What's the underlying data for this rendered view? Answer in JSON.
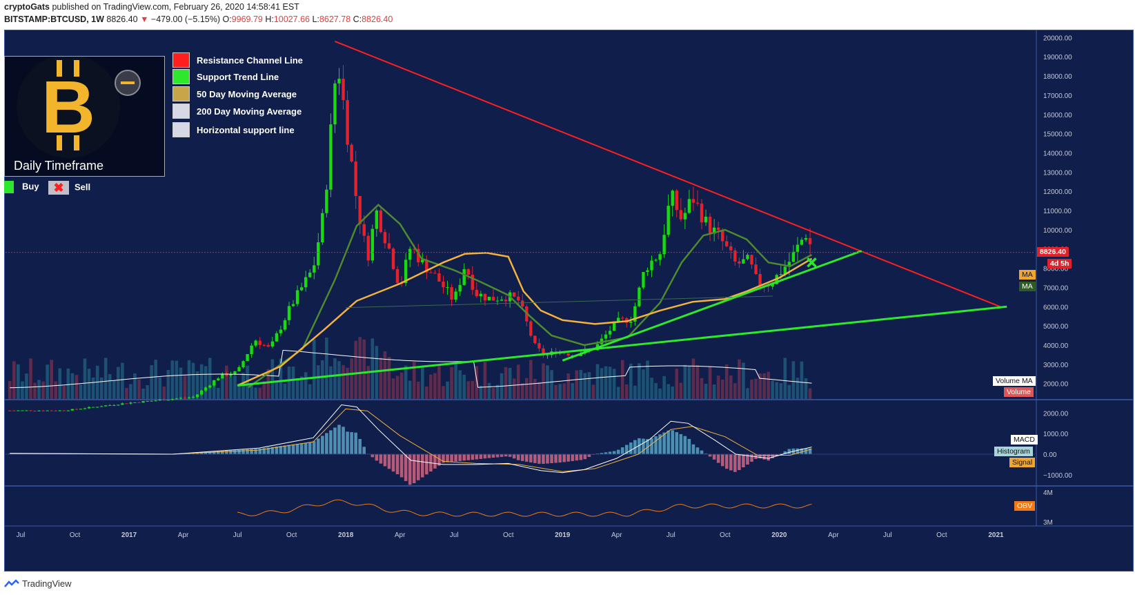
{
  "header": {
    "author": "cryptoGats",
    "published_text": "published on TradingView.com, February 26, 2020 14:58:41 EST",
    "symbol": "BITSTAMP:BTCUSD, 1W",
    "last": "8826.40",
    "change": "−479.00 (−5.15%)",
    "o_label": "O:",
    "o": "9969.79",
    "h_label": "H:",
    "h": "10027.66",
    "l_label": "L:",
    "l": "8627.78",
    "c_label": "C:",
    "c": "8826.40"
  },
  "legend": {
    "items": [
      {
        "label": "Resistance Channel Line",
        "color": "#ff1f1f"
      },
      {
        "label": "Support Trend Line",
        "color": "#2ee82e"
      },
      {
        "label": "50 Day Moving Average",
        "color": "#c9a54a"
      },
      {
        "label": "200 Day Moving Average",
        "color": "#d6d8e6"
      },
      {
        "label": "Horizontal support line",
        "color": "#d6d8e6"
      }
    ],
    "timeframe": "Daily Timeframe",
    "buy": "Buy",
    "sell": "Sell"
  },
  "tags": {
    "price": "8826.40",
    "countdown": "4d 5h",
    "ma1": "MA",
    "ma2": "MA",
    "volume_ma": "Volume MA",
    "volume": "Volume",
    "macd": "MACD",
    "histogram": "Histogram",
    "signal": "Signal",
    "obv": "OBV"
  },
  "footer": {
    "brand": "TradingView"
  },
  "chart_data": {
    "type": "candlestick",
    "title": "BITSTAMP:BTCUSD, 1W",
    "price_axis": [
      "20000.00",
      "19000.00",
      "18000.00",
      "17000.00",
      "16000.00",
      "15000.00",
      "14000.00",
      "13000.00",
      "12000.00",
      "11000.00",
      "10000.00",
      "9000.00",
      "8000.00",
      "7000.00",
      "6000.00",
      "5000.00",
      "4000.00",
      "3000.00",
      "2000.00"
    ],
    "macd_axis": [
      "2000.00",
      "1000.00",
      "0.00",
      "−1000.00"
    ],
    "obv_axis": [
      "4M",
      "3M"
    ],
    "x_ticks": [
      "Jul",
      "Oct",
      "2017",
      "Apr",
      "Jul",
      "Oct",
      "2018",
      "Apr",
      "Jul",
      "Oct",
      "2019",
      "Apr",
      "Jul",
      "Oct",
      "2020",
      "Apr",
      "Jul",
      "Oct",
      "2021"
    ],
    "x_tick_dates": [
      2016.5,
      2016.75,
      2017.0,
      2017.25,
      2017.5,
      2017.75,
      2018.0,
      2018.25,
      2018.5,
      2018.75,
      2019.0,
      2019.25,
      2019.5,
      2019.75,
      2020.0,
      2020.25,
      2020.5,
      2020.75,
      2021.0
    ],
    "ylim": [
      1200,
      20300
    ],
    "xlim": [
      2016.43,
      2021.18
    ],
    "close_path": [
      [
        2016.7,
        600
      ],
      [
        2017.0,
        1000
      ],
      [
        2017.3,
        1300
      ],
      [
        2017.42,
        2400
      ],
      [
        2017.5,
        2600
      ],
      [
        2017.58,
        4300
      ],
      [
        2017.65,
        3800
      ],
      [
        2017.75,
        6100
      ],
      [
        2017.85,
        8000
      ],
      [
        2017.9,
        11000
      ],
      [
        2017.96,
        19000
      ],
      [
        2018.02,
        14000
      ],
      [
        2018.05,
        11500
      ],
      [
        2018.1,
        8500
      ],
      [
        2018.14,
        11000
      ],
      [
        2018.2,
        9000
      ],
      [
        2018.25,
        7000
      ],
      [
        2018.3,
        9200
      ],
      [
        2018.35,
        8300
      ],
      [
        2018.42,
        7500
      ],
      [
        2018.5,
        6300
      ],
      [
        2018.55,
        8200
      ],
      [
        2018.6,
        6700
      ],
      [
        2018.67,
        6400
      ],
      [
        2018.75,
        6550
      ],
      [
        2018.8,
        6300
      ],
      [
        2018.87,
        4000
      ],
      [
        2018.92,
        3400
      ],
      [
        2018.97,
        3700
      ],
      [
        2019.05,
        3500
      ],
      [
        2019.15,
        3850
      ],
      [
        2019.25,
        5200
      ],
      [
        2019.32,
        5400
      ],
      [
        2019.38,
        8000
      ],
      [
        2019.45,
        8800
      ],
      [
        2019.5,
        11800
      ],
      [
        2019.55,
        10500
      ],
      [
        2019.6,
        11700
      ],
      [
        2019.67,
        10200
      ],
      [
        2019.72,
        9700
      ],
      [
        2019.8,
        8200
      ],
      [
        2019.86,
        8400
      ],
      [
        2019.9,
        7200
      ],
      [
        2019.96,
        7200
      ],
      [
        2020.05,
        8400
      ],
      [
        2020.1,
        9400
      ],
      [
        2020.13,
        9900
      ],
      [
        2020.15,
        8826
      ]
    ],
    "resistance_line": [
      [
        2017.95,
        19800
      ],
      [
        2021.02,
        6000
      ]
    ],
    "support_line": [
      [
        2017.5,
        1900
      ],
      [
        2021.05,
        6000
      ]
    ],
    "support_trend_line": [
      [
        2019.0,
        3200
      ],
      [
        2020.38,
        8900
      ]
    ],
    "horizontal_support": [
      [
        2018.0,
        5950
      ],
      [
        2019.97,
        6550
      ]
    ],
    "moving_average_50": [
      [
        2017.5,
        1900
      ],
      [
        2017.7,
        2900
      ],
      [
        2017.9,
        4800
      ],
      [
        2018.05,
        6300
      ],
      [
        2018.25,
        7200
      ],
      [
        2018.45,
        8300
      ],
      [
        2018.55,
        8750
      ],
      [
        2018.65,
        8800
      ],
      [
        2018.75,
        8600
      ],
      [
        2018.82,
        6800
      ],
      [
        2018.9,
        5800
      ],
      [
        2019.0,
        5300
      ],
      [
        2019.15,
        5100
      ],
      [
        2019.3,
        5250
      ],
      [
        2019.45,
        5800
      ],
      [
        2019.6,
        6250
      ],
      [
        2019.75,
        6400
      ],
      [
        2019.85,
        6800
      ],
      [
        2020.0,
        7500
      ],
      [
        2020.15,
        8500
      ]
    ],
    "moving_average_200": [
      [
        2017.55,
        1800
      ],
      [
        2017.8,
        3800
      ],
      [
        2017.95,
        7400
      ],
      [
        2018.05,
        10200
      ],
      [
        2018.15,
        11300
      ],
      [
        2018.25,
        10300
      ],
      [
        2018.35,
        8500
      ],
      [
        2018.5,
        7900
      ],
      [
        2018.62,
        7300
      ],
      [
        2018.75,
        6600
      ],
      [
        2018.85,
        5500
      ],
      [
        2018.95,
        4500
      ],
      [
        2019.1,
        4000
      ],
      [
        2019.3,
        4400
      ],
      [
        2019.45,
        6200
      ],
      [
        2019.55,
        8300
      ],
      [
        2019.65,
        9700
      ],
      [
        2019.75,
        10000
      ],
      [
        2019.85,
        9500
      ],
      [
        2019.95,
        8300
      ],
      [
        2020.05,
        8100
      ],
      [
        2020.15,
        8700
      ]
    ],
    "macd": [
      [
        2016.45,
        40
      ],
      [
        2017.2,
        0
      ],
      [
        2017.6,
        300
      ],
      [
        2017.85,
        800
      ],
      [
        2017.98,
        2400
      ],
      [
        2018.05,
        2300
      ],
      [
        2018.15,
        1200
      ],
      [
        2018.3,
        -300
      ],
      [
        2018.45,
        -500
      ],
      [
        2018.6,
        -500
      ],
      [
        2018.75,
        -450
      ],
      [
        2018.9,
        -800
      ],
      [
        2019.0,
        -900
      ],
      [
        2019.1,
        -750
      ],
      [
        2019.25,
        -200
      ],
      [
        2019.4,
        700
      ],
      [
        2019.5,
        1600
      ],
      [
        2019.58,
        1500
      ],
      [
        2019.7,
        700
      ],
      [
        2019.8,
        0
      ],
      [
        2019.95,
        -200
      ],
      [
        2020.05,
        100
      ],
      [
        2020.15,
        350
      ]
    ],
    "signal": [
      [
        2016.45,
        30
      ],
      [
        2017.2,
        0
      ],
      [
        2017.6,
        200
      ],
      [
        2017.85,
        600
      ],
      [
        2018.0,
        2200
      ],
      [
        2018.1,
        2100
      ],
      [
        2018.25,
        900
      ],
      [
        2018.45,
        -350
      ],
      [
        2018.6,
        -450
      ],
      [
        2018.8,
        -500
      ],
      [
        2019.0,
        -850
      ],
      [
        2019.15,
        -700
      ],
      [
        2019.35,
        0
      ],
      [
        2019.5,
        1200
      ],
      [
        2019.6,
        1350
      ],
      [
        2019.75,
        850
      ],
      [
        2019.9,
        -50
      ],
      [
        2020.05,
        -50
      ],
      [
        2020.15,
        250
      ]
    ],
    "buy_marker": {
      "date": 2020.15,
      "price": 8300
    },
    "sell_marker": null
  }
}
